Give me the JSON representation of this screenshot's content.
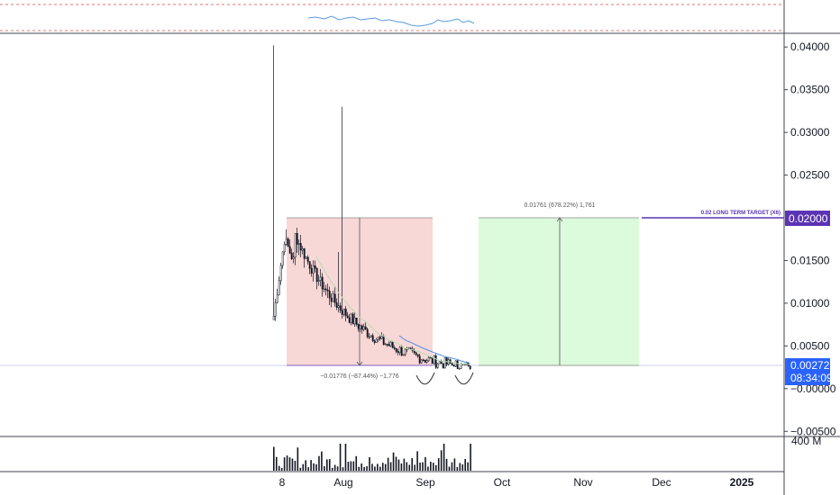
{
  "chart_data": {
    "type": "candlestick",
    "y_axis": {
      "ticks": [
        "0.04000",
        "0.03500",
        "0.03000",
        "0.02500",
        "0.01500",
        "0.01000",
        "0.00500",
        "−0.00000",
        "−0.00500"
      ],
      "tick_values": [
        0.04,
        0.035,
        0.03,
        0.025,
        0.015,
        0.01,
        0.005,
        0,
        -0.005
      ],
      "range": [
        -0.0055,
        0.0415
      ]
    },
    "x_axis": {
      "labels": [
        "8",
        "Aug",
        "Sep",
        "Oct",
        "Nov",
        "Dec",
        "2025"
      ]
    },
    "price_tag": {
      "value": "0.00272",
      "countdown": "08:34:09",
      "color": "#2962ff"
    },
    "target_tag": {
      "value": "0.02000",
      "label": "0.02 LONG TERM TARGET (X6)",
      "color": "#5b33b5"
    },
    "volume_label": "400 M",
    "short_position": {
      "label": "−0.01776 (−87.44%) −1,776",
      "top": 0.02,
      "bottom": 0.00272,
      "color": "#f8d7d7"
    },
    "long_projection": {
      "label": "0.01761 (678.22%) 1,761",
      "top": 0.02,
      "bottom": 0.00272,
      "color": "#dcfadc"
    },
    "colors": {
      "candle": "#131722",
      "ma_short": "#b7dcb0",
      "ma_long": "#4f8fe0",
      "grid_line": "#e91e63"
    }
  }
}
